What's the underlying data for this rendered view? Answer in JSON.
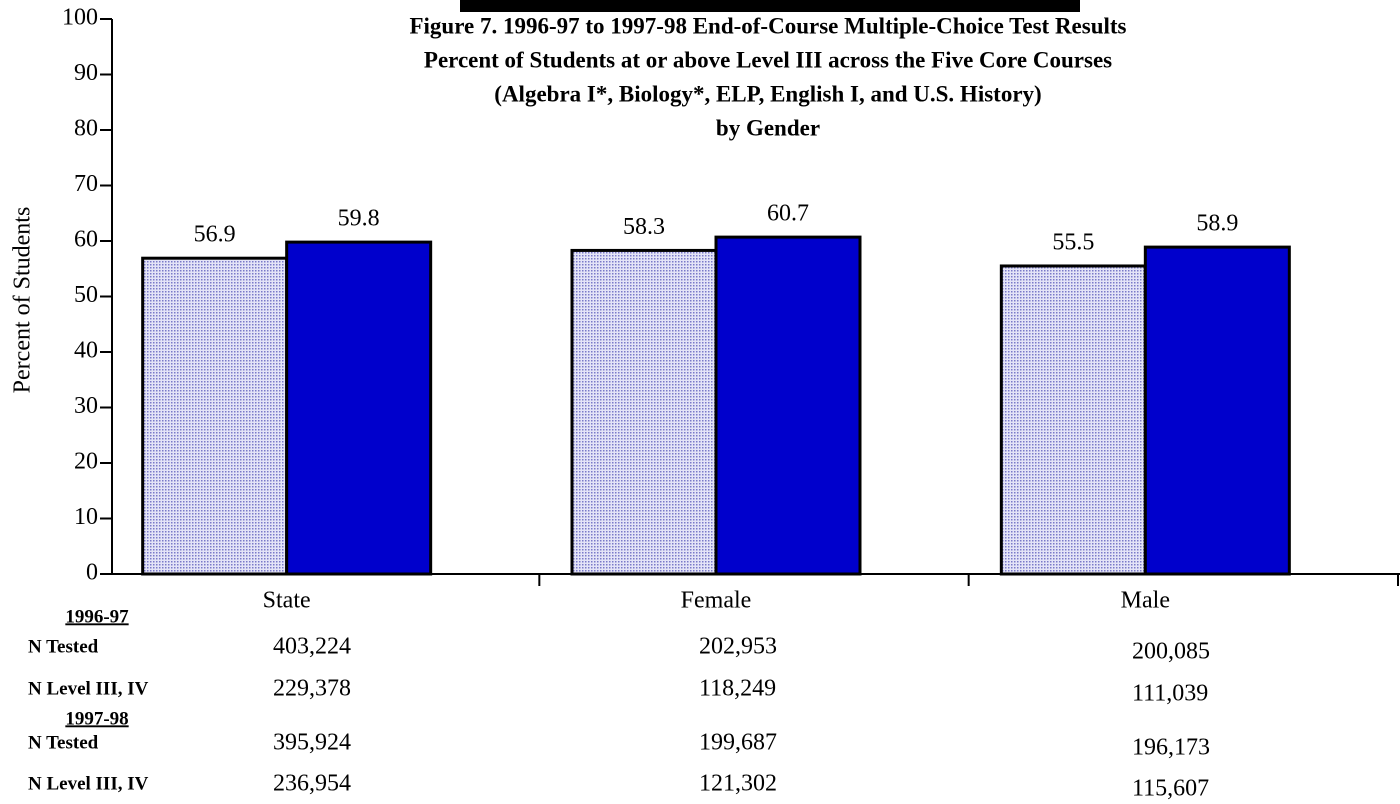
{
  "chart_data": {
    "type": "bar",
    "title": [
      "Figure 7.  1996-97 to 1997-98 End-of-Course Multiple-Choice Test Results",
      "Percent of Students at or above Level III across the Five Core Courses",
      "(Algebra I*, Biology*, ELP, English I, and U.S. History)",
      "by Gender"
    ],
    "ylabel": "Percent of Students",
    "categories": [
      "State",
      "Female",
      "Male"
    ],
    "series": [
      {
        "name": "1996-97",
        "color": "#c9c9ee",
        "values": [
          56.9,
          58.3,
          55.5
        ],
        "table_rows": [
          {
            "label": "N Tested",
            "values": [
              "403,224",
              "202,953",
              "200,085"
            ]
          },
          {
            "label": "N Level III, IV",
            "values": [
              "229,378",
              "118,249",
              "111,039"
            ]
          }
        ]
      },
      {
        "name": "1997-98",
        "color": "#0000cc",
        "values": [
          59.8,
          60.7,
          58.9
        ],
        "table_rows": [
          {
            "label": "N Tested",
            "values": [
              "395,924",
              "199,687",
              "196,173"
            ]
          },
          {
            "label": "N Level III, IV",
            "values": [
              "236,954",
              "121,302",
              "115,607"
            ]
          }
        ]
      }
    ],
    "ylim": [
      0,
      100
    ],
    "yticks": [
      0,
      10,
      20,
      30,
      40,
      50,
      60,
      70,
      80,
      90,
      100
    ]
  }
}
